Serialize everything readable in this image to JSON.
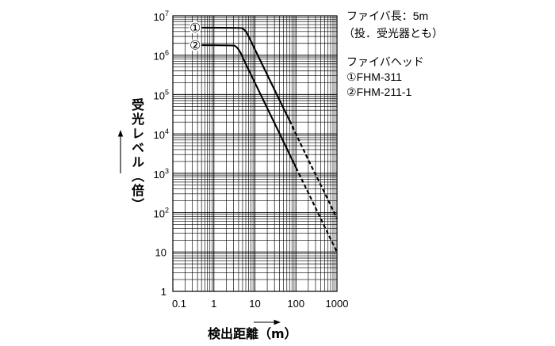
{
  "chart_data": {
    "type": "line",
    "x_scale": "log",
    "y_scale": "log",
    "xlim": [
      0.1,
      1000
    ],
    "ylim": [
      1,
      10000000
    ],
    "xlabel": "検出距離（m）",
    "ylabel": "受光レベル（倍）",
    "grid": true,
    "x_ticks": [
      {
        "value": 0.1,
        "label": "0.1"
      },
      {
        "value": 1,
        "label": "1"
      },
      {
        "value": 10,
        "label": "10"
      },
      {
        "value": 100,
        "label": "100"
      },
      {
        "value": 1000,
        "label": "1000"
      }
    ],
    "y_ticks": [
      {
        "value": 1,
        "label": "1"
      },
      {
        "value": 10,
        "label": "10"
      },
      {
        "value": 100,
        "label": "10",
        "sup": "2"
      },
      {
        "value": 1000,
        "label": "10",
        "sup": "3"
      },
      {
        "value": 10000,
        "label": "10",
        "sup": "4"
      },
      {
        "value": 100000,
        "label": "10",
        "sup": "5"
      },
      {
        "value": 1000000,
        "label": "10",
        "sup": "6"
      },
      {
        "value": 10000000,
        "label": "10",
        "sup": "7"
      }
    ],
    "legend": {
      "placement": "right",
      "notes": [
        "ファイバ長：5m",
        "（投．受光器とも）"
      ],
      "title": "ファイバヘッド"
    },
    "series": [
      {
        "marker": "①",
        "name": "FHM-311",
        "color": "#000000",
        "solid": [
          [
            0.35,
            5000000
          ],
          [
            4.2,
            5000000
          ],
          [
            5.0,
            4800000
          ],
          [
            5.6,
            4400000
          ],
          [
            6.3,
            3800000
          ],
          [
            7.0,
            3000000
          ],
          [
            8.5,
            2000000
          ],
          [
            10,
            1400000
          ],
          [
            20,
            320000
          ],
          [
            50,
            44000
          ],
          [
            70,
            22000
          ]
        ],
        "dashed": [
          [
            70,
            22000
          ],
          [
            100,
            10000
          ],
          [
            200,
            2200
          ],
          [
            500,
            320
          ],
          [
            1000,
            71
          ]
        ]
      },
      {
        "marker": "②",
        "name": "FHM-211-1",
        "color": "#000000",
        "solid": [
          [
            0.35,
            1800000
          ],
          [
            2.9,
            1800000
          ],
          [
            3.4,
            1700000
          ],
          [
            3.9,
            1450000
          ],
          [
            4.5,
            1150000
          ],
          [
            5.5,
            720000
          ],
          [
            7.0,
            430000
          ],
          [
            10,
            200000
          ],
          [
            20,
            45000
          ],
          [
            50,
            6300
          ],
          [
            100,
            1400
          ]
        ],
        "dashed": [
          [
            100,
            1400
          ],
          [
            200,
            320
          ],
          [
            500,
            44
          ],
          [
            1000,
            10
          ]
        ]
      }
    ]
  }
}
